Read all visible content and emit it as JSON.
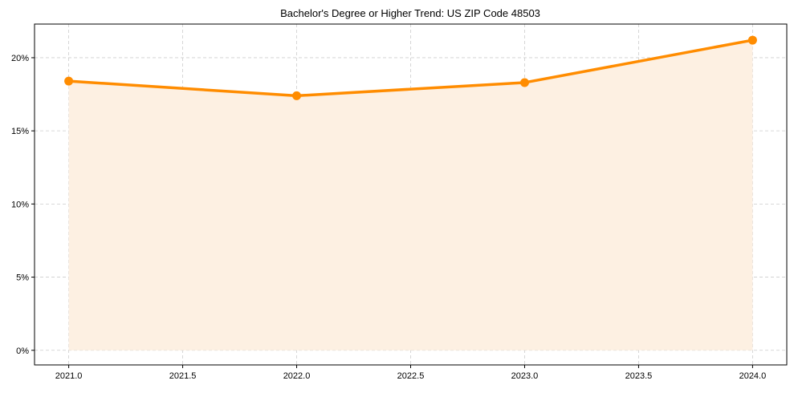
{
  "chart_data": {
    "type": "line",
    "title": "Bachelor's Degree or Higher Trend: US ZIP Code 48503",
    "xlabel": "",
    "ylabel": "",
    "x": [
      2021,
      2022,
      2023,
      2024
    ],
    "series": [
      {
        "name": "Bachelor's Degree or Higher",
        "values": [
          18.4,
          17.4,
          18.3,
          21.2
        ],
        "color": "#ff8c00",
        "fill_color": "#fdf0e2"
      }
    ],
    "xlim": [
      2020.85,
      2024.15
    ],
    "ylim": [
      -1.0,
      22.3
    ],
    "xticks": [
      2021.0,
      2021.5,
      2022.0,
      2022.5,
      2023.0,
      2023.5,
      2024.0
    ],
    "xtick_labels": [
      "2021.0",
      "2021.5",
      "2022.0",
      "2022.5",
      "2023.0",
      "2023.5",
      "2024.0"
    ],
    "yticks": [
      0,
      5,
      10,
      15,
      20
    ],
    "ytick_labels": [
      "0%",
      "5%",
      "10%",
      "15%",
      "20%"
    ],
    "grid": true,
    "legend": "none"
  }
}
